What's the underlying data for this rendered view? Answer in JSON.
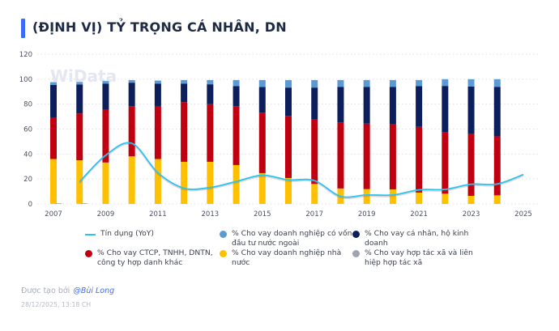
{
  "title": "(ĐỊNH VỊ) TỶ TRỌNG CÁ NHÂN, DN",
  "watermark": "WiData",
  "colors": {
    "credit": "#29c4f0",
    "fdi": "#5b9bd5",
    "individual": "#0c1f5c",
    "ctcp": "#c00010",
    "state": "#ffc000",
    "coop": "#a0a4ae",
    "accent": "#3b6cf6"
  },
  "chart_data": {
    "type": "bar",
    "stacked": true,
    "x_tick_labels": [
      "2007",
      "2009",
      "2011",
      "2013",
      "2015",
      "2017",
      "2019",
      "2021",
      "2023",
      "2025"
    ],
    "y_tick_labels": [
      "0",
      "20",
      "40",
      "60",
      "80",
      "100",
      "120"
    ],
    "ylim": [
      0,
      120
    ],
    "xlim": [
      2007,
      2025
    ],
    "grid": true,
    "legend_position": "bottom",
    "years": [
      2007,
      2008,
      2009,
      2010,
      2011,
      2012,
      2013,
      2014,
      2015,
      2016,
      2017,
      2018,
      2019,
      2020,
      2021,
      2022,
      2023,
      2024
    ],
    "series": [
      {
        "name": "% Cho vay doanh nghiệp nhà nước",
        "key": "state",
        "values": [
          36,
          35,
          33.2,
          38.2,
          36,
          33.8,
          33.8,
          31.2,
          24.7,
          20.8,
          16,
          12.4,
          11.9,
          11.7,
          9.1,
          8.2,
          6.5,
          6.9
        ]
      },
      {
        "name": "% Cho vay CTCP, TNHH, DNTN, công ty hợp danh khác",
        "key": "ctcp",
        "values": [
          33.4,
          37.5,
          42.3,
          40.1,
          42.5,
          47.8,
          46.2,
          47.1,
          48.4,
          49.7,
          52.1,
          52.9,
          52.5,
          52.1,
          52.7,
          49.3,
          49.9,
          47.3
        ]
      },
      {
        "name": "% Cho vay cá nhân, hộ kinh doanh",
        "key": "individual",
        "values": [
          26,
          23.2,
          21,
          18.9,
          18,
          14.9,
          15.9,
          16.1,
          20.6,
          22.8,
          25.2,
          28.6,
          29.5,
          30.1,
          32.6,
          37.1,
          37.7,
          39.7
        ]
      },
      {
        "name": "% Cho vay doanh nghiệp có vốn đầu tư nước ngoài",
        "key": "fdi",
        "values": [
          2.2,
          2.1,
          2,
          2.1,
          2.4,
          2.8,
          3.4,
          4.9,
          5.6,
          6,
          6,
          5.4,
          5.4,
          5.4,
          4.9,
          5.4,
          5.9,
          6.1
        ]
      },
      {
        "name": "% Cho vay hợp tác xã và liên hiệp hợp tác xã",
        "key": "coop",
        "values": [
          0.5,
          0.5,
          0,
          0,
          0,
          0,
          0,
          0,
          0,
          0,
          0,
          0,
          0,
          0,
          0,
          0,
          0,
          0
        ]
      }
    ],
    "line_series": {
      "name": "Tín dụng (YoY)",
      "key": "credit",
      "years": [
        2008,
        2009,
        2010,
        2011,
        2012,
        2013,
        2014,
        2015,
        2016,
        2017,
        2018,
        2019,
        2020,
        2021,
        2022,
        2023,
        2024,
        2025
      ],
      "values": [
        17.8,
        39,
        48.6,
        25,
        12.6,
        13.2,
        18,
        23,
        19.3,
        18.7,
        6.1,
        7.2,
        7.2,
        11.3,
        11.7,
        15.8,
        16,
        23.6
      ]
    }
  },
  "legend": [
    {
      "label": "Tín dụng (YoY)",
      "key": "credit",
      "shape": "line"
    },
    {
      "label": "% Cho vay doanh nghiệp có vốn đầu tư nước ngoài",
      "key": "fdi",
      "shape": "dot"
    },
    {
      "label": "% Cho vay cá nhân, hộ kinh doanh",
      "key": "individual",
      "shape": "dot"
    },
    {
      "label": "% Cho vay CTCP, TNHH, DNTN, công ty hợp danh khác",
      "key": "ctcp",
      "shape": "dot"
    },
    {
      "label": "% Cho vay doanh nghiệp nhà nước",
      "key": "state",
      "shape": "dot"
    },
    {
      "label": "% Cho vay hợp tác xã và liên hiệp hợp tác xã",
      "key": "coop",
      "shape": "dot"
    }
  ],
  "footer": {
    "created_by": "Được tạo bởi",
    "author": "@Bùi Long",
    "timestamp": "28/12/2025, 13:18 CH"
  }
}
